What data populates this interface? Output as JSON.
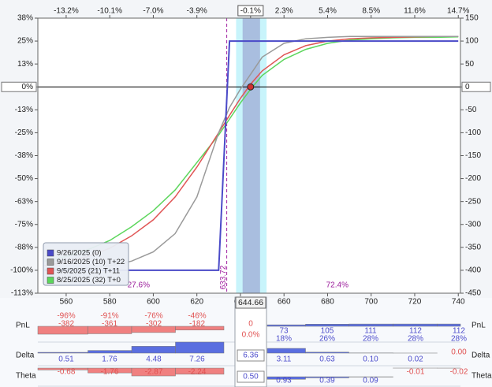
{
  "chart_data": {
    "type": "line",
    "x": [
      550,
      560,
      570,
      580,
      590,
      600,
      610,
      620,
      630,
      635,
      640,
      645,
      650,
      660,
      670,
      680,
      690,
      700,
      710,
      720,
      730,
      740
    ],
    "series": [
      {
        "name": "9/26/2025 (0)",
        "color": "#4a4ac8",
        "values": [
          -400,
          -400,
          -400,
          -400,
          -400,
          -400,
          -400,
          -400,
          -400,
          100,
          100,
          100,
          100,
          100,
          100,
          100,
          100,
          100,
          100,
          100,
          100,
          100
        ]
      },
      {
        "name": "9/16/2025 (10) T+22",
        "color": "#9a9a9a",
        "values": [
          -398,
          -397,
          -395,
          -390,
          -380,
          -360,
          -320,
          -240,
          -100,
          -45,
          -5,
          30,
          65,
          95,
          105,
          108,
          110,
          110,
          110,
          110,
          110,
          110
        ]
      },
      {
        "name": "9/5/2025 (21) T+11",
        "color": "#e05555",
        "values": [
          -390,
          -382,
          -370,
          -352,
          -325,
          -290,
          -240,
          -175,
          -100,
          -62,
          -25,
          8,
          35,
          70,
          90,
          100,
          105,
          107,
          108,
          109,
          110,
          110
        ]
      },
      {
        "name": "8/25/2025 (32) T+0",
        "color": "#5cd65c",
        "values": [
          -380,
          -370,
          -355,
          -335,
          -305,
          -270,
          -225,
          -165,
          -105,
          -70,
          -35,
          -3,
          25,
          60,
          82,
          95,
          102,
          105,
          107,
          108,
          108,
          109
        ]
      }
    ],
    "xlim": [
      547,
      741
    ],
    "xticks": [
      560,
      580,
      600,
      620,
      640,
      660,
      680,
      700,
      720,
      740
    ],
    "x2ticks": [
      {
        "value": 560,
        "label": "-13.2%"
      },
      {
        "value": 580,
        "label": "-10.1%"
      },
      {
        "value": 600,
        "label": "-7.0%"
      },
      {
        "value": 620,
        "label": "-3.9%"
      },
      {
        "value": 644.66,
        "label": "-0.1%"
      },
      {
        "value": 660,
        "label": "2.3%"
      },
      {
        "value": 680,
        "label": "5.4%"
      },
      {
        "value": 700,
        "label": "8.5%"
      },
      {
        "value": 720,
        "label": "11.6%"
      },
      {
        "value": 740,
        "label": "14.7%"
      }
    ],
    "ylim": [
      -450,
      150
    ],
    "yticks": [
      {
        "value": 150,
        "label": "38%"
      },
      {
        "value": 100,
        "label": "25%"
      },
      {
        "value": 50,
        "label": "13%"
      },
      {
        "value": 0,
        "label": "0%"
      },
      {
        "value": -50,
        "label": "-13%"
      },
      {
        "value": -100,
        "label": "-25%"
      },
      {
        "value": -150,
        "label": "-38%"
      },
      {
        "value": -200,
        "label": "-50%"
      },
      {
        "value": -250,
        "label": "-63%"
      },
      {
        "value": -300,
        "label": "-75%"
      },
      {
        "value": -350,
        "label": "-88%"
      },
      {
        "value": -400,
        "label": "-100%"
      },
      {
        "value": -450,
        "label": "-113%"
      }
    ],
    "y2lim": [
      -450,
      150
    ],
    "y2ticks": [
      150,
      100,
      50,
      0,
      -50,
      -100,
      -150,
      -200,
      -250,
      -300,
      -350,
      -400,
      -450
    ],
    "legend": "bottom-left",
    "breakeven": {
      "value": 633.72,
      "color": "#a020a0"
    },
    "current_price": 644.66,
    "bands": [
      {
        "range": [
          638,
          652
        ],
        "color": "#c8f4fb"
      },
      {
        "range": [
          641,
          649
        ],
        "color": "#a9bedf"
      }
    ],
    "probabilities": {
      "values": [
        27.6,
        72.4
      ],
      "value_labels": [
        "27.6%",
        "72.4%"
      ]
    }
  },
  "panel": {
    "rows": [
      {
        "label": "PnL",
        "values": [
          -382,
          -361,
          -302,
          -182,
          0,
          73,
          105,
          111,
          112,
          112
        ],
        "percent_labels": [
          "-96%",
          "-91%",
          "-76%",
          "-46%",
          "0.0%",
          "18%",
          "26%",
          "28%",
          "28%",
          "28%"
        ]
      },
      {
        "label": "Delta",
        "values": [
          0.51,
          1.76,
          4.48,
          7.26,
          6.36,
          3.11,
          0.63,
          0.1,
          0.02,
          0
        ],
        "value_labels": [
          "0.51",
          "1.76",
          "4.48",
          "7.26",
          "6.36",
          "3.11",
          "0.63",
          "0.10",
          "0.02",
          "0.00"
        ]
      },
      {
        "label": "Theta",
        "values": [
          -0.68,
          -1.76,
          -2.87,
          -2.24,
          0.5,
          0.93,
          0.39,
          0.09,
          -0.01,
          -0.02
        ],
        "value_labels": [
          "-0.68",
          "-1.76",
          "-2.87",
          "-2.24",
          "0.50",
          "0.93",
          "0.39",
          "0.09",
          "-0.01",
          "-0.02"
        ]
      }
    ]
  }
}
